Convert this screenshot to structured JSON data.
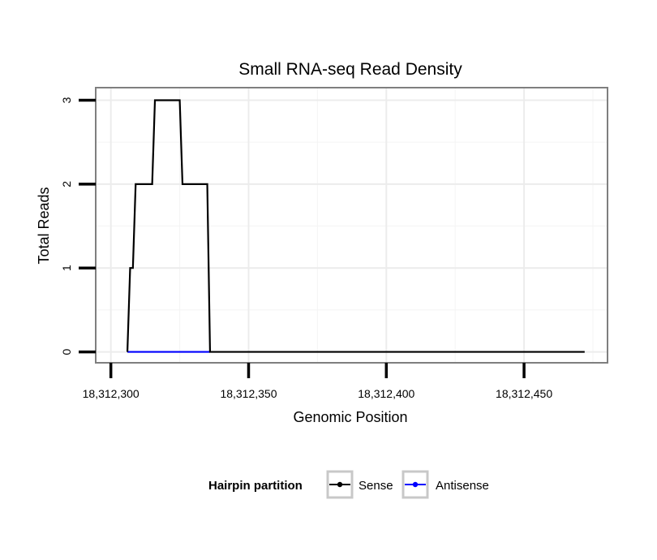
{
  "chart_data": {
    "type": "line",
    "title": "Small RNA-seq Read Density",
    "xlabel": "Genomic Position",
    "ylabel": "Total Reads",
    "xlim": [
      18312294.5,
      18312480.3
    ],
    "ylim": [
      -0.13,
      3.15
    ],
    "x_ticks": [
      18312300,
      18312350,
      18312400,
      18312450
    ],
    "x_tick_labels": [
      "18,312,300",
      "18,312,350",
      "18,312,400",
      "18,312,450"
    ],
    "y_ticks": [
      0,
      1,
      2,
      3
    ],
    "y_tick_labels": [
      "0",
      "1",
      "2",
      "3"
    ],
    "grid": true,
    "legend_position": "bottom",
    "legend": {
      "title": "Hairpin partition",
      "entries": [
        "Sense",
        "Antisense"
      ]
    },
    "series": [
      {
        "name": "Sense",
        "color": "#000000",
        "x": [
          18312306,
          18312307,
          18312308,
          18312309,
          18312310,
          18312315,
          18312316,
          18312317,
          18312325,
          18312326,
          18312335,
          18312336,
          18312472
        ],
        "y": [
          0,
          1,
          1,
          2,
          2,
          2,
          3,
          3,
          3,
          2,
          2,
          0,
          0
        ]
      },
      {
        "name": "Antisense",
        "color": "#0000ff",
        "x": [
          18312306,
          18312336
        ],
        "y": [
          0,
          0
        ]
      }
    ]
  }
}
